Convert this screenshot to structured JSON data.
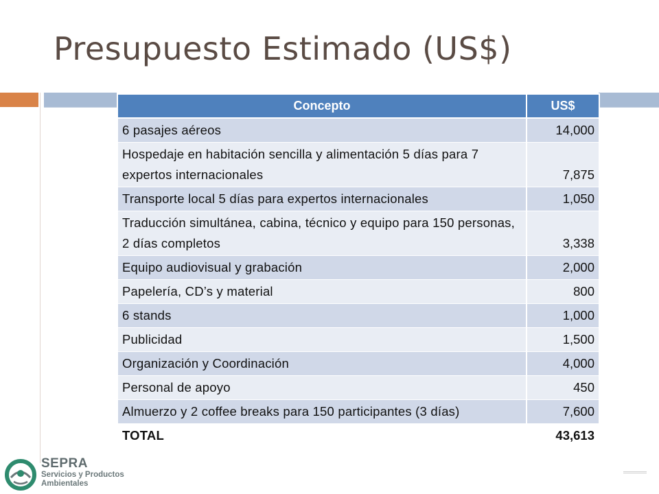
{
  "slide": {
    "title": "Presupuesto Estimado (US$)"
  },
  "table": {
    "headers": {
      "concept": "Concepto",
      "amount": "US$"
    },
    "rows": [
      {
        "concept": "6 pasajes aéreos",
        "amount": "14,000"
      },
      {
        "concept": "Hospedaje en habitación sencilla y alimentación 5 días para 7 expertos internacionales",
        "amount": "7,875"
      },
      {
        "concept": "Transporte local 5 días para expertos internacionales",
        "amount": "1,050"
      },
      {
        "concept": "Traducción simultánea, cabina, técnico y equipo para 150 personas, 2 días completos",
        "amount": "3,338"
      },
      {
        "concept": "Equipo audiovisual y grabación",
        "amount": "2,000"
      },
      {
        "concept": "Papelería, CD’s y material",
        "amount": "800"
      },
      {
        "concept": "6 stands",
        "amount": "1,000"
      },
      {
        "concept": "Publicidad",
        "amount": "1,500"
      },
      {
        "concept": "Organización y Coordinación",
        "amount": "4,000"
      },
      {
        "concept": "Personal de apoyo",
        "amount": "450"
      },
      {
        "concept": "Almuerzo y 2 coffee breaks para 150 participantes (3 días)",
        "amount": "7,600"
      }
    ],
    "total": {
      "concept": "TOTAL",
      "amount": "43,613"
    }
  },
  "logo": {
    "name": "SEPRA",
    "subtitle_line1": "Servicios y Productos",
    "subtitle_line2": "Ambientales",
    "icon": "sepra-logo-icon"
  },
  "colors": {
    "title": "#5a4b44",
    "accent_orange": "#d98348",
    "accent_blue": "#a8bbd4",
    "header_blue": "#4f81bd",
    "row_dark": "#d0d8e8",
    "row_light": "#e9edf4",
    "logo_green": "#2e8b6e"
  }
}
